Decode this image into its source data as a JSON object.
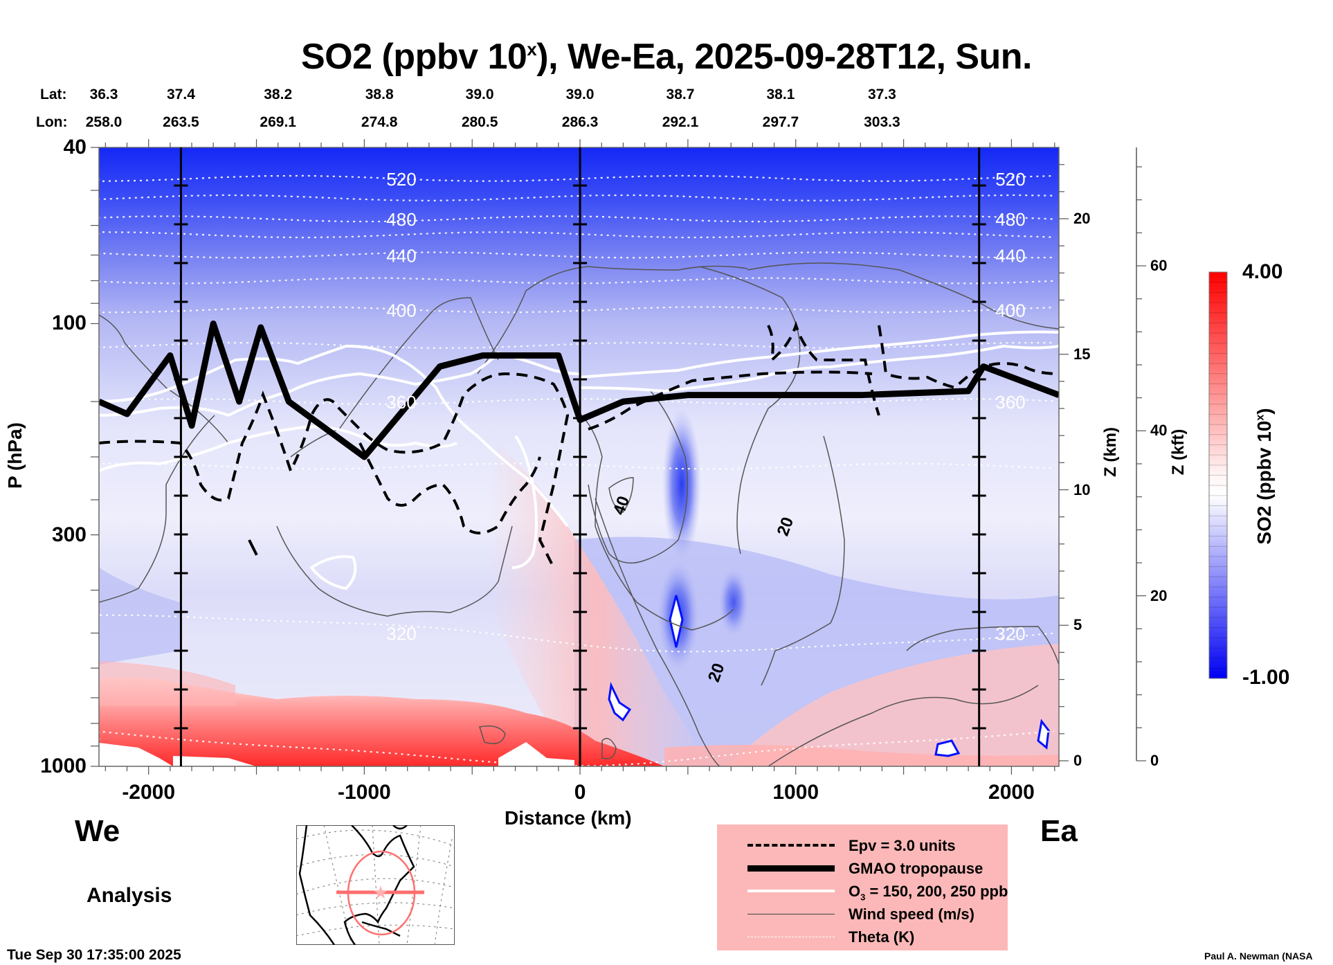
{
  "title": {
    "main": "SO2 (ppbv 10",
    "sup": "x",
    "rest": "), We-Ea, 2025-09-28T12, Sun."
  },
  "latlon": {
    "lat_prefix": "Lat:",
    "lon_prefix": "Lon:",
    "columns": [
      {
        "distance_km": -2200,
        "lat": "36.3",
        "lon": "258.0"
      },
      {
        "distance_km": -1850,
        "lat": "37.4",
        "lon": "263.5"
      },
      {
        "distance_km": -1400,
        "lat": "38.2",
        "lon": "269.1"
      },
      {
        "distance_km": -930,
        "lat": "38.8",
        "lon": "274.8"
      },
      {
        "distance_km": -465,
        "lat": "39.0",
        "lon": "280.5"
      },
      {
        "distance_km": 0,
        "lat": "39.0",
        "lon": "286.3"
      },
      {
        "distance_km": 465,
        "lat": "38.7",
        "lon": "292.1"
      },
      {
        "distance_km": 930,
        "lat": "38.1",
        "lon": "297.7"
      },
      {
        "distance_km": 1400,
        "lat": "37.3",
        "lon": "303.3"
      }
    ]
  },
  "chart_data": {
    "type": "heatmap",
    "title": "SO2 (ppbv 10^x), We-Ea, 2025-09-28T12, Sun.",
    "xlabel": "Distance (km)",
    "ylabel": "P (hPa)",
    "xlim": [
      -2230,
      2220
    ],
    "ylim_hpa": [
      1000,
      40
    ],
    "y_scale": "log",
    "x_ticks": [
      -2000,
      -1000,
      0,
      1000,
      2000
    ],
    "x_tick_labels": [
      "-2000",
      "-1000",
      "0",
      "1000",
      "2000"
    ],
    "y_ticks": [
      40,
      100,
      300,
      1000
    ],
    "y_tick_labels": [
      "40",
      "100",
      "300",
      "1000"
    ],
    "z_km_axis": {
      "label": "Z (km)",
      "ticks": [
        0,
        5,
        10,
        15,
        20
      ],
      "tick_labels": [
        "0",
        "5",
        "10",
        "15",
        "20"
      ]
    },
    "z_kft_axis": {
      "label": "Z (kft)",
      "ticks": [
        0,
        20,
        40,
        60
      ],
      "tick_labels": [
        "0",
        "20",
        "40",
        "60"
      ]
    },
    "vertical_markers_km": [
      -1850,
      0,
      1850
    ],
    "colorbar": {
      "label": "SO2 (ppbv 10",
      "label_sup": "x",
      "label_end": ")",
      "min": -1.0,
      "max": 4.0,
      "min_label": "-1.00",
      "max_label": "4.00",
      "low_color": "#0000ff",
      "mid_color": "#ffffff",
      "high_color": "#ff0000"
    },
    "theta_contours_K": [
      {
        "value": 520,
        "label": "520",
        "p": 47
      },
      {
        "value": 500,
        "label": "",
        "p": 52
      },
      {
        "value": 480,
        "label": "480",
        "p": 58
      },
      {
        "value": 460,
        "label": "",
        "p": 63
      },
      {
        "value": 440,
        "label": "440",
        "p": 70
      },
      {
        "value": 420,
        "label": "",
        "p": 80
      },
      {
        "value": 400,
        "label": "400",
        "p": 93
      },
      {
        "value": 380,
        "label": "",
        "p": 112
      },
      {
        "value": 360,
        "label": "360",
        "p": 150
      },
      {
        "value": 340,
        "label": "",
        "p": 210
      },
      {
        "value": 320,
        "label": "320",
        "p": 500
      },
      {
        "value": 300,
        "label": "",
        "p": 900
      }
    ],
    "wind_speed_labels": [
      {
        "label": "40",
        "x_km": 215,
        "p": 260
      },
      {
        "label": "20",
        "x_km": 975,
        "p": 290
      },
      {
        "label": "20",
        "x_km": 655,
        "p": 620
      }
    ],
    "tropopause_p_approx": [
      {
        "x_km": -2230,
        "p": 150
      },
      {
        "x_km": -2100,
        "p": 160
      },
      {
        "x_km": -1900,
        "p": 118
      },
      {
        "x_km": -1800,
        "p": 170
      },
      {
        "x_km": -1700,
        "p": 100
      },
      {
        "x_km": -1580,
        "p": 150
      },
      {
        "x_km": -1480,
        "p": 102
      },
      {
        "x_km": -1350,
        "p": 150
      },
      {
        "x_km": -1000,
        "p": 200
      },
      {
        "x_km": -650,
        "p": 125
      },
      {
        "x_km": -450,
        "p": 118
      },
      {
        "x_km": -100,
        "p": 118
      },
      {
        "x_km": 0,
        "p": 165
      },
      {
        "x_km": 200,
        "p": 150
      },
      {
        "x_km": 500,
        "p": 145
      },
      {
        "x_km": 1300,
        "p": 145
      },
      {
        "x_km": 1800,
        "p": 142
      },
      {
        "x_km": 1870,
        "p": 125
      },
      {
        "x_km": 2220,
        "p": 145
      }
    ]
  },
  "legend": {
    "items": [
      {
        "label": "Epv = 3.0 units",
        "style": "dashed"
      },
      {
        "label": "GMAO tropopause",
        "style": "thick"
      },
      {
        "label_main": "O",
        "label_sub": "3",
        "label_rest": " = 150, 200, 250 ppb",
        "style": "white"
      },
      {
        "label": "Wind speed (m/s)",
        "style": "thin"
      },
      {
        "label": "Theta (K)",
        "style": "dotted"
      }
    ]
  },
  "labels": {
    "west": "We",
    "east": "Ea",
    "analysis": "Analysis",
    "timestamp": "Tue Sep 30 17:35:00 2025",
    "credit": "Paul A. Newman (NASA"
  },
  "map": {
    "track_color": "#ff7070",
    "circle_color": "#ff7070"
  }
}
